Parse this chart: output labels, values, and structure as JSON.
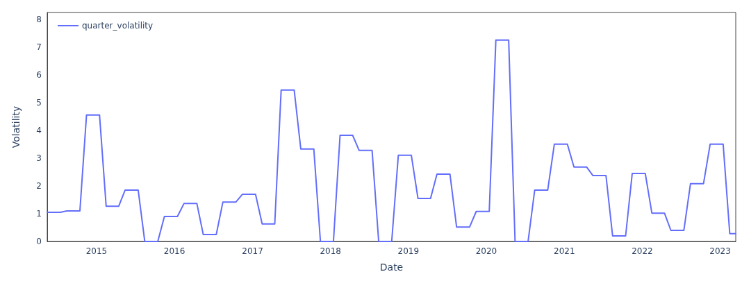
{
  "chart_data": {
    "type": "line",
    "xlabel": "Date",
    "ylabel": "Volatility",
    "x": [
      "2014-05-15",
      "2014-06-15",
      "2014-07-15",
      "2014-08-15",
      "2014-09-15",
      "2014-10-15",
      "2014-11-15",
      "2014-12-15",
      "2015-01-15",
      "2015-02-15",
      "2015-03-15",
      "2015-04-15",
      "2015-05-15",
      "2015-06-15",
      "2015-07-15",
      "2015-08-15",
      "2015-09-15",
      "2015-10-15",
      "2015-11-15",
      "2015-12-15",
      "2016-01-15",
      "2016-02-15",
      "2016-03-15",
      "2016-04-15",
      "2016-05-15",
      "2016-06-15",
      "2016-07-15",
      "2016-08-15",
      "2016-09-15",
      "2016-10-15",
      "2016-11-15",
      "2016-12-15",
      "2017-01-15",
      "2017-02-15",
      "2017-03-15",
      "2017-04-15",
      "2017-05-15",
      "2017-06-15",
      "2017-07-15",
      "2017-08-15",
      "2017-09-15",
      "2017-10-15",
      "2017-11-15",
      "2017-12-15",
      "2018-01-15",
      "2018-02-15",
      "2018-03-15",
      "2018-04-15",
      "2018-05-15",
      "2018-06-15",
      "2018-07-15",
      "2018-08-15",
      "2018-09-15",
      "2018-10-15",
      "2018-11-15",
      "2018-12-15",
      "2019-01-15",
      "2019-02-15",
      "2019-03-15",
      "2019-04-15",
      "2019-05-15",
      "2019-06-15",
      "2019-07-15",
      "2019-08-15",
      "2019-09-15",
      "2019-10-15",
      "2019-11-15",
      "2019-12-15",
      "2020-01-15",
      "2020-02-15",
      "2020-03-15",
      "2020-04-15",
      "2020-05-15",
      "2020-06-15",
      "2020-07-15",
      "2020-08-15",
      "2020-09-15",
      "2020-10-15",
      "2020-11-15",
      "2020-12-15",
      "2021-01-15",
      "2021-02-15",
      "2021-03-15",
      "2021-04-15",
      "2021-05-15",
      "2021-06-15",
      "2021-07-15",
      "2021-08-15",
      "2021-09-15",
      "2021-10-15",
      "2021-11-15",
      "2021-12-15",
      "2022-01-15",
      "2022-02-15",
      "2022-03-15",
      "2022-04-15",
      "2022-05-15",
      "2022-06-15",
      "2022-07-15",
      "2022-08-15",
      "2022-09-15",
      "2022-10-15",
      "2022-11-15",
      "2022-12-15",
      "2023-01-15",
      "2023-02-15",
      "2023-03-15"
    ],
    "series": [
      {
        "name": "quarter_volatility",
        "color": "#636efa",
        "values": [
          1.05,
          1.05,
          1.05,
          1.1,
          1.1,
          1.1,
          4.55,
          4.55,
          4.55,
          1.27,
          1.27,
          1.27,
          1.85,
          1.85,
          1.85,
          0,
          0,
          0,
          0.9,
          0.9,
          0.9,
          1.37,
          1.37,
          1.37,
          0.25,
          0.25,
          0.25,
          1.42,
          1.42,
          1.42,
          1.7,
          1.7,
          1.7,
          0.63,
          0.63,
          0.63,
          5.45,
          5.45,
          5.45,
          3.33,
          3.33,
          3.33,
          0,
          0,
          0,
          3.82,
          3.82,
          3.82,
          3.28,
          3.28,
          3.28,
          0,
          0,
          0,
          3.1,
          3.1,
          3.1,
          1.55,
          1.55,
          1.55,
          2.42,
          2.42,
          2.42,
          0.52,
          0.52,
          0.52,
          1.08,
          1.08,
          1.08,
          7.25,
          7.25,
          7.25,
          0,
          0,
          0,
          1.85,
          1.85,
          1.85,
          3.5,
          3.5,
          3.5,
          2.68,
          2.68,
          2.68,
          2.37,
          2.37,
          2.37,
          0.2,
          0.2,
          0.2,
          2.45,
          2.45,
          2.45,
          1.02,
          1.02,
          1.02,
          0.4,
          0.4,
          0.4,
          2.08,
          2.08,
          2.08,
          3.5,
          3.5,
          3.5,
          0.28,
          0.28
        ]
      }
    ],
    "xlim": [
      "2014-05-15",
      "2023-03-15"
    ],
    "xticks": [
      {
        "value": "2015",
        "label": "2015"
      },
      {
        "value": "2016",
        "label": "2016"
      },
      {
        "value": "2017",
        "label": "2017"
      },
      {
        "value": "2018",
        "label": "2018"
      },
      {
        "value": "2019",
        "label": "2019"
      },
      {
        "value": "2020",
        "label": "2020"
      },
      {
        "value": "2021",
        "label": "2021"
      },
      {
        "value": "2022",
        "label": "2022"
      },
      {
        "value": "2023",
        "label": "2023"
      }
    ],
    "ylim": [
      0,
      8.24
    ],
    "yticks": [
      0,
      1,
      2,
      3,
      4,
      5,
      6,
      7,
      8
    ],
    "grid": false,
    "legend": "top left",
    "marker": "none",
    "line_style": "solid"
  }
}
